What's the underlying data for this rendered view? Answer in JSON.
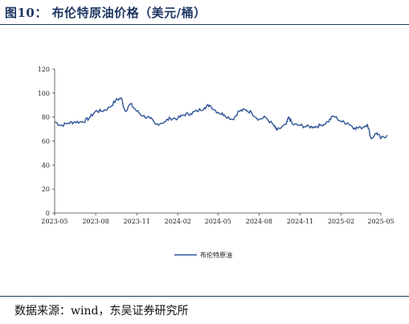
{
  "figure": {
    "title": "图10：  布伦特原油价格（美元/桶）",
    "source": "数据来源：wind，东吴证券研究所"
  },
  "chart_data": {
    "type": "line",
    "title": "",
    "xlabel": "",
    "ylabel": "",
    "ylim": [
      0,
      120
    ],
    "yticks": [
      0,
      20,
      40,
      60,
      80,
      100,
      120
    ],
    "xticks": [
      "2023-05",
      "2023-08",
      "2023-11",
      "2024-02",
      "2024-05",
      "2024-08",
      "2024-11",
      "2025-02",
      "2025-05"
    ],
    "grid": false,
    "legend": "bottom-center",
    "color": "#2e5597",
    "series": [
      {
        "name": "布伦特原油",
        "x": [
          "2023-05-02",
          "2023-05-15",
          "2023-06-01",
          "2023-06-15",
          "2023-07-03",
          "2023-07-17",
          "2023-08-01",
          "2023-08-15",
          "2023-09-01",
          "2023-09-15",
          "2023-09-27",
          "2023-10-06",
          "2023-10-18",
          "2023-11-01",
          "2023-11-15",
          "2023-12-01",
          "2023-12-13",
          "2024-01-02",
          "2024-01-15",
          "2024-02-01",
          "2024-02-15",
          "2024-03-01",
          "2024-03-15",
          "2024-04-01",
          "2024-04-12",
          "2024-05-01",
          "2024-05-15",
          "2024-06-03",
          "2024-06-17",
          "2024-07-01",
          "2024-07-15",
          "2024-08-01",
          "2024-08-15",
          "2024-09-03",
          "2024-09-10",
          "2024-10-01",
          "2024-10-07",
          "2024-10-15",
          "2024-11-01",
          "2024-11-15",
          "2024-12-02",
          "2024-12-16",
          "2025-01-02",
          "2025-01-15",
          "2025-02-03",
          "2025-02-17",
          "2025-03-03",
          "2025-03-17",
          "2025-04-01",
          "2025-04-09",
          "2025-04-22",
          "2025-05-01",
          "2025-05-15"
        ],
        "values": [
          76,
          73,
          75,
          76,
          76,
          79,
          85,
          85,
          88,
          94,
          96,
          85,
          91,
          85,
          81,
          79,
          74,
          76,
          79,
          79,
          82,
          83,
          85,
          88,
          90,
          84,
          82,
          78,
          85,
          86,
          84,
          78,
          80,
          73,
          69,
          74,
          80,
          74,
          73,
          72,
          72,
          73,
          76,
          81,
          76,
          75,
          71,
          71,
          74,
          62,
          67,
          62,
          65
        ]
      }
    ]
  }
}
